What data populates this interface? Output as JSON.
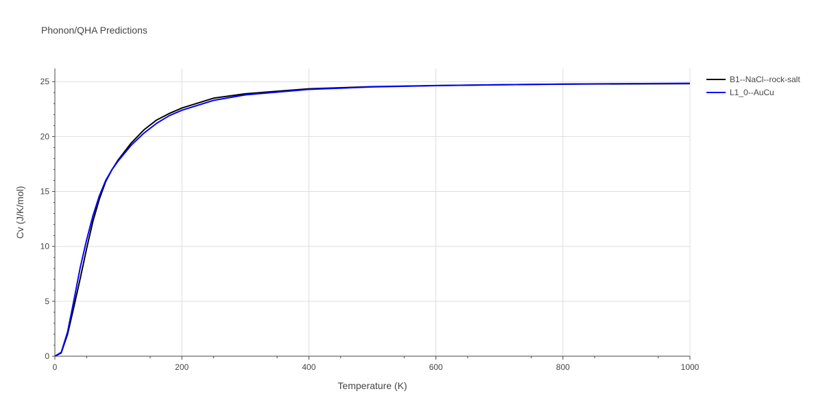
{
  "title": "Phonon/QHA Predictions",
  "colors": {
    "grid": "#dddddd",
    "axis": "#444444",
    "background": "#ffffff"
  },
  "legend_position": "top-right outside",
  "chart_data": {
    "type": "line",
    "title": "Phonon/QHA Predictions",
    "xlabel": "Temperature (K)",
    "ylabel": "Cv (J/K/mol)",
    "xlim": [
      0,
      1000
    ],
    "ylim": [
      0,
      26.2
    ],
    "x_ticks": [
      "0",
      "200",
      "400",
      "600",
      "800",
      "1000"
    ],
    "y_ticks": [
      "0",
      "5",
      "10",
      "15",
      "20",
      "25"
    ],
    "grid": true,
    "series": [
      {
        "name": "B1--NaCl--rock-salt",
        "color": "#000000",
        "x": [
          0,
          10,
          20,
          30,
          40,
          50,
          60,
          70,
          80,
          90,
          100,
          120,
          140,
          160,
          180,
          200,
          250,
          300,
          400,
          500,
          600,
          700,
          800,
          900,
          1000
        ],
        "y": [
          0,
          0.3,
          2.0,
          4.5,
          7.1,
          9.8,
          12.3,
          14.3,
          15.9,
          17.0,
          17.9,
          19.4,
          20.6,
          21.5,
          22.1,
          22.6,
          23.5,
          23.9,
          24.35,
          24.55,
          24.65,
          24.72,
          24.77,
          24.8,
          24.82
        ]
      },
      {
        "name": "L1_0--AuCu",
        "color": "#0000ff",
        "x": [
          0,
          10,
          20,
          30,
          40,
          50,
          60,
          70,
          80,
          90,
          100,
          120,
          140,
          160,
          180,
          200,
          250,
          300,
          400,
          500,
          600,
          700,
          800,
          900,
          1000
        ],
        "y": [
          0,
          0.35,
          2.2,
          5.1,
          8.1,
          10.6,
          12.8,
          14.6,
          16.0,
          17.0,
          17.8,
          19.2,
          20.3,
          21.2,
          21.9,
          22.4,
          23.3,
          23.8,
          24.3,
          24.52,
          24.64,
          24.72,
          24.78,
          24.82,
          24.85
        ]
      }
    ]
  }
}
